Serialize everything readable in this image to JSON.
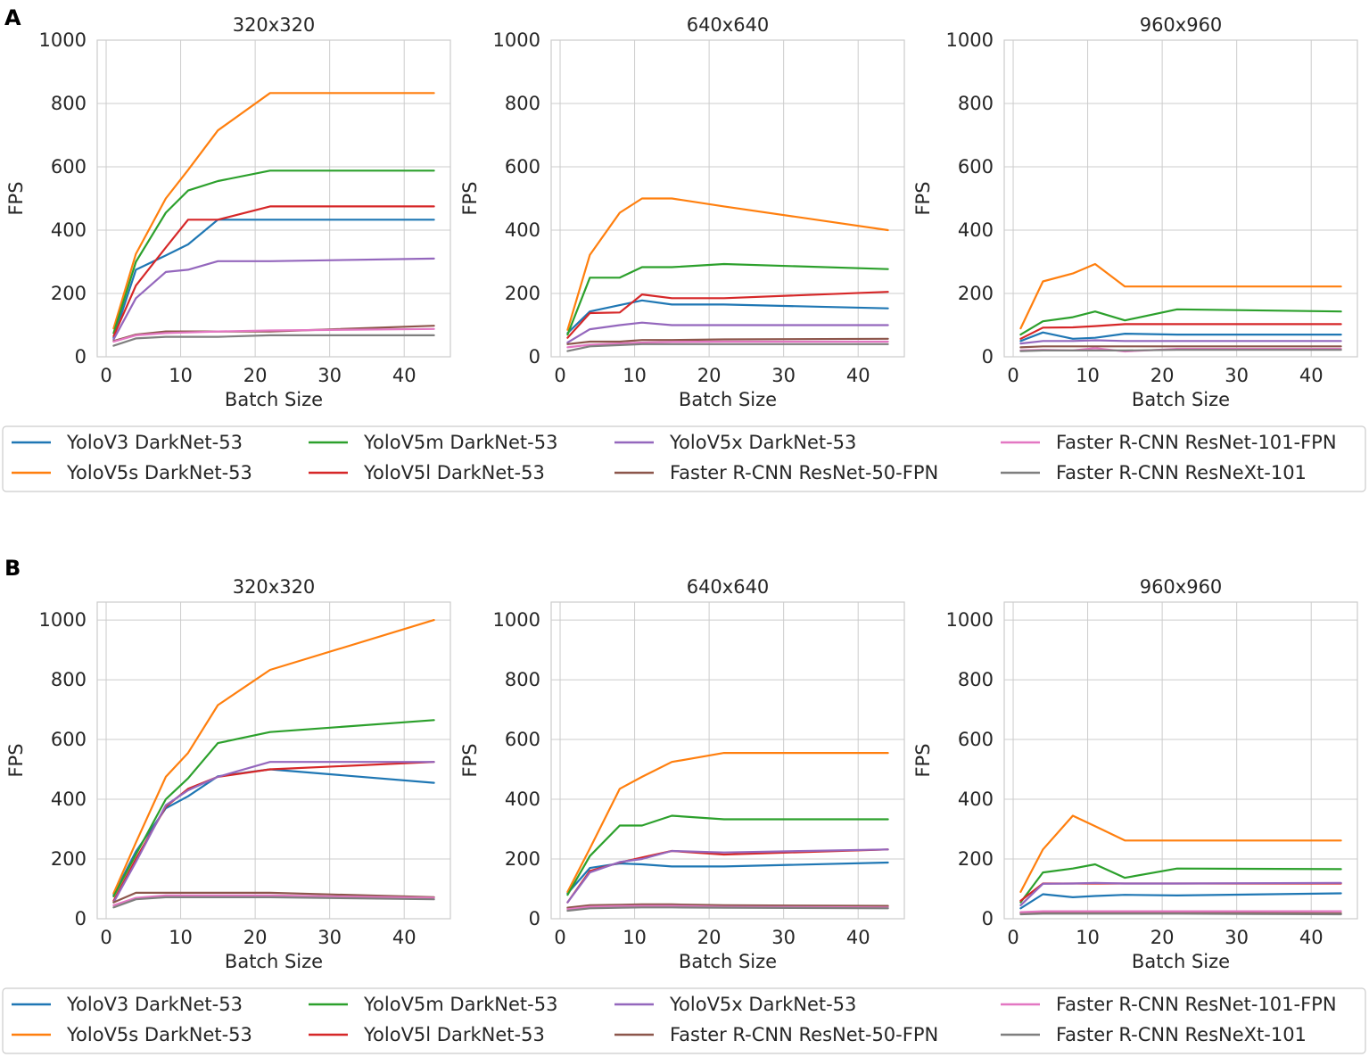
{
  "panels": [
    {
      "label": "A",
      "charts": [
        {
          "type": "line",
          "title": "320x320",
          "xlabel": "Batch Size",
          "ylabel": "FPS",
          "xlim": [
            -1.2,
            46.2
          ],
          "ylim": [
            0,
            1000
          ],
          "xticks": [
            "0",
            "10",
            "20",
            "30",
            "40"
          ],
          "yticks": [
            "0",
            "200",
            "400",
            "600",
            "800",
            "1000"
          ],
          "x": [
            1,
            4,
            8,
            11,
            15,
            22,
            44
          ],
          "series": [
            {
              "name": "YoloV3 DarkNet-53",
              "values": [
                60,
                275,
                320,
                355,
                433,
                433,
                433
              ]
            },
            {
              "name": "YoloV5s DarkNet-53",
              "values": [
                90,
                325,
                500,
                590,
                715,
                833,
                833
              ]
            },
            {
              "name": "YoloV5m DarkNet-53",
              "values": [
                75,
                300,
                455,
                525,
                555,
                588,
                588
              ]
            },
            {
              "name": "YoloV5l DarkNet-53",
              "values": [
                65,
                225,
                345,
                433,
                433,
                475,
                475
              ]
            },
            {
              "name": "YoloV5x DarkNet-53",
              "values": [
                55,
                185,
                268,
                275,
                302,
                302,
                310
              ]
            },
            {
              "name": "Faster R-CNN ResNet-50-FPN",
              "values": [
                50,
                70,
                80,
                80,
                80,
                80,
                98
              ]
            },
            {
              "name": "Faster R-CNN ResNet-101-FPN",
              "values": [
                48,
                68,
                75,
                77,
                80,
                83,
                88
              ]
            },
            {
              "name": "Faster R-CNN ResNeXt-101",
              "values": [
                35,
                58,
                63,
                63,
                63,
                68,
                68
              ]
            }
          ]
        },
        {
          "type": "line",
          "title": "640x640",
          "xlabel": "Batch Size",
          "ylabel": "FPS",
          "xlim": [
            -1.2,
            46.2
          ],
          "ylim": [
            0,
            1000
          ],
          "xticks": [
            "0",
            "10",
            "20",
            "30",
            "40"
          ],
          "yticks": [
            "0",
            "200",
            "400",
            "600",
            "800",
            "1000"
          ],
          "x": [
            1,
            4,
            8,
            11,
            15,
            22,
            44
          ],
          "series": [
            {
              "name": "YoloV3 DarkNet-53",
              "values": [
                75,
                143,
                163,
                178,
                165,
                165,
                153
              ]
            },
            {
              "name": "YoloV5s DarkNet-53",
              "values": [
                85,
                322,
                455,
                500,
                500,
                475,
                400
              ]
            },
            {
              "name": "YoloV5m DarkNet-53",
              "values": [
                70,
                250,
                250,
                283,
                283,
                293,
                277
              ]
            },
            {
              "name": "YoloV5l DarkNet-53",
              "values": [
                60,
                138,
                140,
                197,
                185,
                185,
                205
              ]
            },
            {
              "name": "YoloV5x DarkNet-53",
              "values": [
                45,
                87,
                100,
                108,
                100,
                100,
                100
              ]
            },
            {
              "name": "Faster R-CNN ResNet-50-FPN",
              "values": [
                40,
                48,
                48,
                53,
                53,
                55,
                57
              ]
            },
            {
              "name": "Faster R-CNN ResNet-101-FPN",
              "values": [
                30,
                38,
                42,
                45,
                47,
                48,
                48
              ]
            },
            {
              "name": "Faster R-CNN ResNeXt-101",
              "values": [
                18,
                33,
                37,
                40,
                40,
                40,
                40
              ]
            }
          ]
        },
        {
          "type": "line",
          "title": "960x960",
          "xlabel": "Batch Size",
          "ylabel": "FPS",
          "xlim": [
            -1.2,
            46.2
          ],
          "ylim": [
            0,
            1000
          ],
          "xticks": [
            "0",
            "10",
            "20",
            "30",
            "40"
          ],
          "yticks": [
            "0",
            "200",
            "400",
            "600",
            "800",
            "1000"
          ],
          "x": [
            1,
            4,
            8,
            11,
            15,
            22,
            44
          ],
          "series": [
            {
              "name": "YoloV3 DarkNet-53",
              "values": [
                50,
                77,
                57,
                60,
                73,
                70,
                70
              ]
            },
            {
              "name": "YoloV5s DarkNet-53",
              "values": [
                90,
                238,
                263,
                293,
                222,
                222,
                222
              ]
            },
            {
              "name": "YoloV5m DarkNet-53",
              "values": [
                70,
                112,
                125,
                143,
                115,
                150,
                143
              ]
            },
            {
              "name": "YoloV5l DarkNet-53",
              "values": [
                57,
                92,
                93,
                97,
                103,
                103,
                103
              ]
            },
            {
              "name": "YoloV5x DarkNet-53",
              "values": [
                42,
                50,
                50,
                52,
                50,
                50,
                50
              ]
            },
            {
              "name": "Faster R-CNN ResNet-50-FPN",
              "values": [
                30,
                33,
                33,
                33,
                33,
                33,
                33
              ]
            },
            {
              "name": "Faster R-CNN ResNet-101-FPN",
              "values": [
                20,
                22,
                20,
                27,
                17,
                25,
                25
              ]
            },
            {
              "name": "Faster R-CNN ResNeXt-101",
              "values": [
                18,
                20,
                20,
                20,
                20,
                22,
                22
              ]
            }
          ]
        }
      ]
    },
    {
      "label": "B",
      "charts": [
        {
          "type": "line",
          "title": "320x320",
          "xlabel": "Batch Size",
          "ylabel": "FPS",
          "xlim": [
            -1.2,
            46.2
          ],
          "ylim": [
            0,
            1060
          ],
          "xticks": [
            "0",
            "10",
            "20",
            "30",
            "40"
          ],
          "yticks": [
            "0",
            "200",
            "400",
            "600",
            "800",
            "1000"
          ],
          "x": [
            1,
            4,
            8,
            11,
            15,
            22,
            44
          ],
          "series": [
            {
              "name": "YoloV3 DarkNet-53",
              "values": [
                80,
                225,
                370,
                410,
                477,
                500,
                455
              ]
            },
            {
              "name": "YoloV5s DarkNet-53",
              "values": [
                85,
                255,
                475,
                555,
                715,
                833,
                1000
              ]
            },
            {
              "name": "YoloV5m DarkNet-53",
              "values": [
                75,
                215,
                400,
                470,
                588,
                625,
                665
              ]
            },
            {
              "name": "YoloV5l DarkNet-53",
              "values": [
                60,
                200,
                375,
                435,
                475,
                500,
                525
              ]
            },
            {
              "name": "YoloV5x DarkNet-53",
              "values": [
                55,
                190,
                380,
                430,
                475,
                525,
                525
              ]
            },
            {
              "name": "Faster R-CNN ResNet-50-FPN",
              "values": [
                55,
                87,
                87,
                87,
                87,
                87,
                72
              ]
            },
            {
              "name": "Faster R-CNN ResNet-101-FPN",
              "values": [
                45,
                70,
                78,
                78,
                78,
                78,
                70
              ]
            },
            {
              "name": "Faster R-CNN ResNeXt-101",
              "values": [
                38,
                65,
                72,
                72,
                72,
                72,
                65
              ]
            }
          ]
        },
        {
          "type": "line",
          "title": "640x640",
          "xlabel": "Batch Size",
          "ylabel": "FPS",
          "xlim": [
            -1.2,
            46.2
          ],
          "ylim": [
            0,
            1060
          ],
          "xticks": [
            "0",
            "10",
            "20",
            "30",
            "40"
          ],
          "yticks": [
            "0",
            "200",
            "400",
            "600",
            "800",
            "1000"
          ],
          "x": [
            1,
            4,
            8,
            11,
            15,
            22,
            44
          ],
          "series": [
            {
              "name": "YoloV3 DarkNet-53",
              "values": [
                85,
                170,
                185,
                182,
                175,
                175,
                188
              ]
            },
            {
              "name": "YoloV5s DarkNet-53",
              "values": [
                90,
                235,
                435,
                475,
                525,
                555,
                555
              ]
            },
            {
              "name": "YoloV5m DarkNet-53",
              "values": [
                80,
                210,
                312,
                312,
                345,
                333,
                333
              ]
            },
            {
              "name": "YoloV5l DarkNet-53",
              "values": [
                55,
                160,
                188,
                205,
                227,
                215,
                232
              ]
            },
            {
              "name": "YoloV5x DarkNet-53",
              "values": [
                55,
                155,
                190,
                200,
                227,
                222,
                232
              ]
            },
            {
              "name": "Faster R-CNN ResNet-50-FPN",
              "values": [
                37,
                45,
                47,
                48,
                48,
                45,
                43
              ]
            },
            {
              "name": "Faster R-CNN ResNet-101-FPN",
              "values": [
                32,
                40,
                42,
                43,
                43,
                40,
                38
              ]
            },
            {
              "name": "Faster R-CNN ResNeXt-101",
              "values": [
                27,
                35,
                37,
                38,
                38,
                37,
                35
              ]
            }
          ]
        },
        {
          "type": "line",
          "title": "960x960",
          "xlabel": "Batch Size",
          "ylabel": "FPS",
          "xlim": [
            -1.2,
            46.2
          ],
          "ylim": [
            0,
            1060
          ],
          "xticks": [
            "0",
            "10",
            "20",
            "30",
            "40"
          ],
          "yticks": [
            "0",
            "200",
            "400",
            "600",
            "800",
            "1000"
          ],
          "x": [
            1,
            4,
            8,
            11,
            15,
            22,
            44
          ],
          "series": [
            {
              "name": "YoloV3 DarkNet-53",
              "values": [
                35,
                82,
                72,
                76,
                80,
                78,
                85
              ]
            },
            {
              "name": "YoloV5s DarkNet-53",
              "values": [
                90,
                232,
                345,
                310,
                262,
                262,
                262
              ]
            },
            {
              "name": "YoloV5m DarkNet-53",
              "values": [
                55,
                155,
                168,
                182,
                137,
                168,
                166
              ]
            },
            {
              "name": "YoloV5l DarkNet-53",
              "values": [
                60,
                118,
                118,
                118,
                118,
                118,
                118
              ]
            },
            {
              "name": "YoloV5x DarkNet-53",
              "values": [
                45,
                117,
                118,
                120,
                118,
                118,
                120
              ]
            },
            {
              "name": "Faster R-CNN ResNet-50-FPN",
              "values": [
                20,
                22,
                22,
                22,
                22,
                20,
                18
              ]
            },
            {
              "name": "Faster R-CNN ResNet-101-FPN",
              "values": [
                22,
                25,
                25,
                25,
                25,
                25,
                25
              ]
            },
            {
              "name": "Faster R-CNN ResNeXt-101",
              "values": [
                15,
                17,
                17,
                17,
                17,
                17,
                15
              ]
            }
          ]
        }
      ]
    }
  ],
  "legend": [
    {
      "name": "YoloV3 DarkNet-53",
      "color": "#1f77b4"
    },
    {
      "name": "YoloV5s DarkNet-53",
      "color": "#ff7f0e"
    },
    {
      "name": "YoloV5m DarkNet-53",
      "color": "#2ca02c"
    },
    {
      "name": "YoloV5l DarkNet-53",
      "color": "#d62728"
    },
    {
      "name": "YoloV5x DarkNet-53",
      "color": "#9467bd"
    },
    {
      "name": "Faster R-CNN ResNet-50-FPN",
      "color": "#8c564b"
    },
    {
      "name": "Faster R-CNN ResNet-101-FPN",
      "color": "#e377c2"
    },
    {
      "name": "Faster R-CNN ResNeXt-101",
      "color": "#7f7f7f"
    }
  ]
}
